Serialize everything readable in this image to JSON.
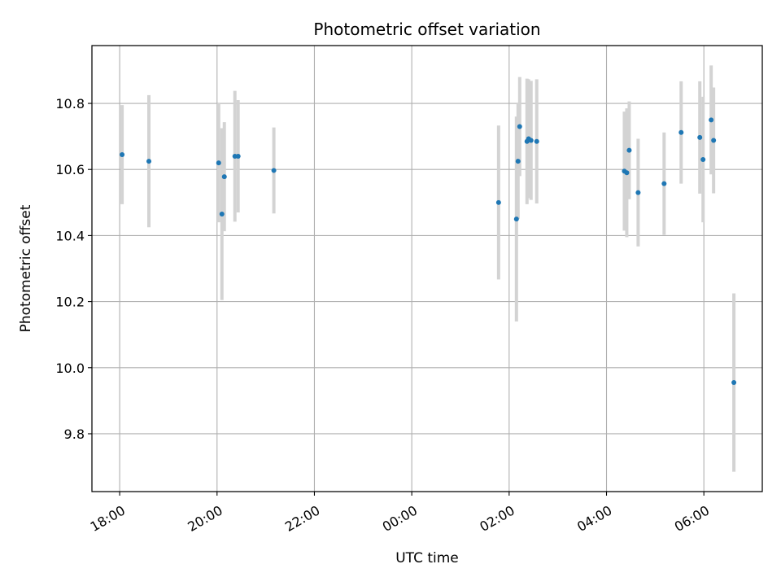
{
  "chart_data": {
    "type": "scatter",
    "title": "Photometric offset variation",
    "xlabel": "UTC time",
    "ylabel": "Photometric offset",
    "x_tick_labels": [
      "18:00",
      "20:00",
      "22:00",
      "00:00",
      "02:00",
      "04:00",
      "06:00"
    ],
    "x_ticks_hours": [
      18,
      20,
      22,
      24,
      26,
      28,
      30
    ],
    "y_tick_labels": [
      "9.8",
      "10.0",
      "10.2",
      "10.4",
      "10.6",
      "10.8"
    ],
    "y_ticks": [
      9.8,
      10.0,
      10.2,
      10.4,
      10.6,
      10.8
    ],
    "xlim_hours": [
      17.43,
      31.2
    ],
    "ylim": [
      9.625,
      10.975
    ],
    "grid": true,
    "colors": {
      "points": "#1f77b4",
      "errorbars": "#d3d3d3",
      "grid": "#b0b0b0"
    },
    "points": [
      {
        "time": "18:03",
        "y": 10.645,
        "err": 0.15
      },
      {
        "time": "18:36",
        "y": 10.625,
        "err": 0.2
      },
      {
        "time": "20:02",
        "y": 10.62,
        "err": 0.18
      },
      {
        "time": "20:06",
        "y": 10.465,
        "err": 0.26
      },
      {
        "time": "20:09",
        "y": 10.578,
        "err": 0.165
      },
      {
        "time": "20:22",
        "y": 10.64,
        "err": 0.198
      },
      {
        "time": "20:26",
        "y": 10.64,
        "err": 0.17
      },
      {
        "time": "21:10",
        "y": 10.597,
        "err": 0.13
      },
      {
        "time": "01:47",
        "y": 10.5,
        "err": 0.233
      },
      {
        "time": "02:09",
        "y": 10.45,
        "err": 0.31
      },
      {
        "time": "02:11",
        "y": 10.625,
        "err": 0.175
      },
      {
        "time": "02:13",
        "y": 10.73,
        "err": 0.15
      },
      {
        "time": "02:22",
        "y": 10.685,
        "err": 0.19
      },
      {
        "time": "02:24",
        "y": 10.693,
        "err": 0.18
      },
      {
        "time": "02:27",
        "y": 10.688,
        "err": 0.18
      },
      {
        "time": "02:34",
        "y": 10.685,
        "err": 0.188
      },
      {
        "time": "04:22",
        "y": 10.595,
        "err": 0.18
      },
      {
        "time": "04:25",
        "y": 10.59,
        "err": 0.195
      },
      {
        "time": "04:28",
        "y": 10.658,
        "err": 0.148
      },
      {
        "time": "04:39",
        "y": 10.53,
        "err": 0.163
      },
      {
        "time": "05:11",
        "y": 10.557,
        "err": 0.155
      },
      {
        "time": "05:32",
        "y": 10.712,
        "err": 0.155
      },
      {
        "time": "05:55",
        "y": 10.697,
        "err": 0.17
      },
      {
        "time": "05:59",
        "y": 10.63,
        "err": 0.19
      },
      {
        "time": "06:09",
        "y": 10.75,
        "err": 0.165
      },
      {
        "time": "06:12",
        "y": 10.688,
        "err": 0.16
      },
      {
        "time": "06:37",
        "y": 9.955,
        "err": 0.27
      }
    ]
  }
}
